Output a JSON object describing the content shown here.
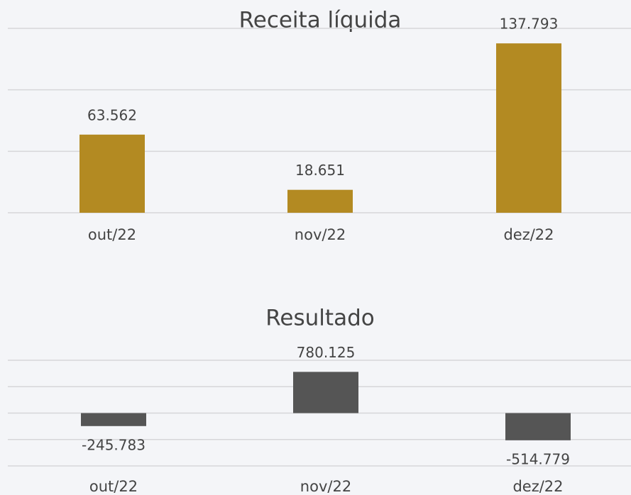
{
  "chart_data": [
    {
      "type": "bar",
      "title": "Receita líquida",
      "categories": [
        "out/22",
        "nov/22",
        "dez/22"
      ],
      "values": [
        63562,
        18651,
        137793
      ],
      "value_labels": [
        "63.562",
        "18.651",
        "137.793"
      ],
      "color": "#b38a22",
      "ylim": [
        0,
        150000
      ],
      "yticks": [
        0,
        50000,
        100000,
        150000
      ],
      "grid": true
    },
    {
      "type": "bar",
      "title": "Resultado",
      "categories": [
        "out/22",
        "nov/22",
        "dez/22"
      ],
      "values": [
        -245783,
        780125,
        -514779
      ],
      "value_labels": [
        "-245.783",
        "780.125",
        "-514.779"
      ],
      "color": "#555555",
      "ylim": [
        -1000000,
        1000000
      ],
      "yticks": [
        -1000000,
        -500000,
        0,
        500000,
        1000000
      ],
      "grid": true
    }
  ]
}
